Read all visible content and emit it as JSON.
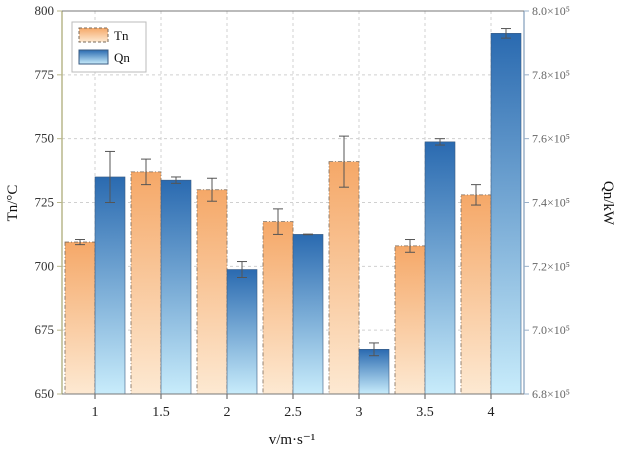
{
  "chart_data": {
    "type": "bar",
    "categories": [
      "1",
      "1.5",
      "2",
      "2.5",
      "3",
      "3.5",
      "4"
    ],
    "series": [
      {
        "name": "Tn",
        "axis": "left",
        "values": [
          709.5,
          737,
          730,
          717.5,
          741,
          708,
          728
        ],
        "errors": [
          1,
          5,
          4.5,
          5,
          10,
          2.5,
          4
        ],
        "color_top": "#f5a868",
        "color_bottom": "#fde9d2",
        "border_color": "#7a6a5a"
      },
      {
        "name": "Qn",
        "axis": "right",
        "values": [
          748000.0,
          747000.0,
          719000.0,
          730000.0,
          694000.0,
          759000.0,
          793000.0
        ],
        "errors": [
          8000.0,
          1000.0,
          2500.0,
          100.0,
          2000.0,
          1000.0,
          1500.0
        ],
        "color_top": "#2a6ab0",
        "color_bottom": "#c8ecfb",
        "border_color": "#3a5a80"
      }
    ],
    "xlabel": "v/m·s⁻¹",
    "ylabel_left": "Tn/°C",
    "ylabel_right": "Qn/kW",
    "ylim_left": [
      650,
      800
    ],
    "ylim_right": [
      680000.0,
      800000.0
    ],
    "yticks_left": [
      "650",
      "675",
      "700",
      "725",
      "750",
      "775",
      "800"
    ],
    "yticks_right": [
      "6.8×10⁵",
      "7.0×10⁵",
      "7.2×10⁵",
      "7.4×10⁵",
      "7.6×10⁵",
      "7.8×10⁵",
      "8.0×10⁵"
    ],
    "left_axis_color": "#b9b78c",
    "right_axis_color": "#9ab0c8",
    "grid": true,
    "legend_position": "top-left"
  }
}
